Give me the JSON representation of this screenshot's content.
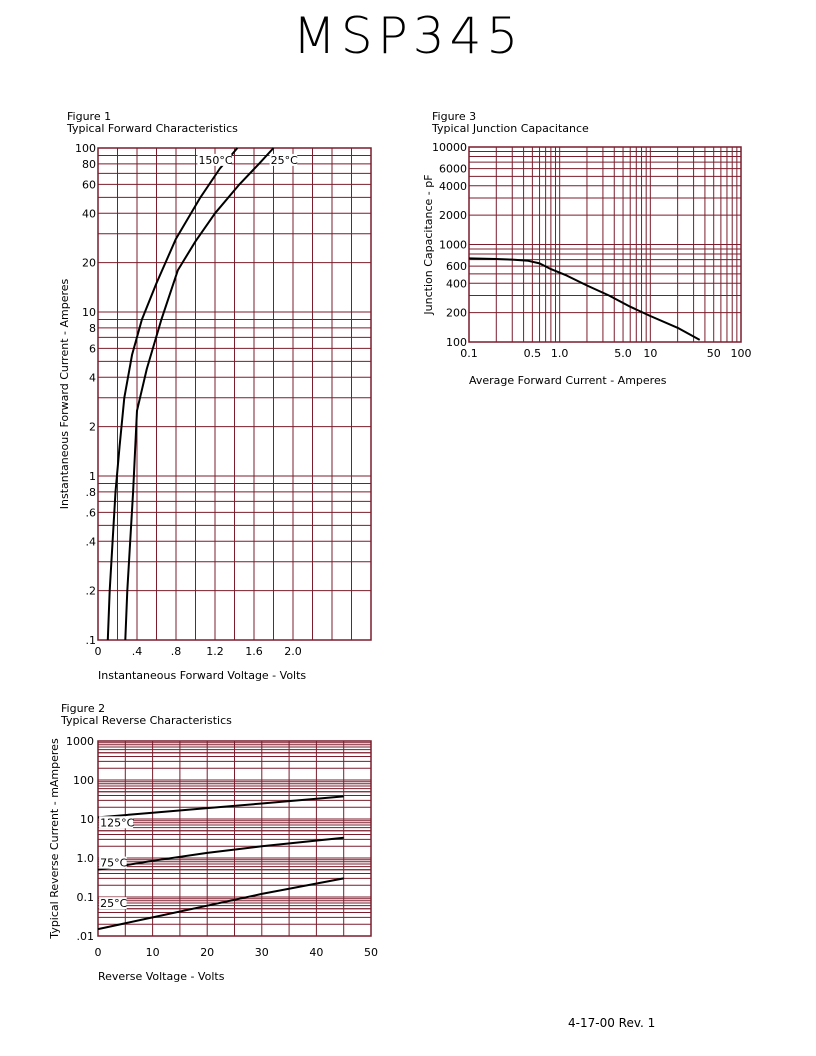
{
  "document": {
    "title": "MSP345",
    "revision": "4-17-00   Rev. 1"
  },
  "figures": [
    {
      "number": "Figure 1",
      "caption": "Typical Forward Characteristics"
    },
    {
      "number": "Figure 2",
      "caption": "Typical Reverse Characteristics"
    },
    {
      "number": "Figure 3",
      "caption": "Typical Junction Capacitance"
    }
  ],
  "colors": {
    "grid": "#7b1d2c",
    "curve": "#000000",
    "text": "#000000"
  },
  "chart_data": [
    {
      "type": "line",
      "title": "Typical Forward Characteristics",
      "xlabel": "Instantaneous Forward Voltage - Volts",
      "ylabel": "Instantaneous Forward Current - Amperes",
      "xlim": [
        0,
        2.8
      ],
      "ylim": [
        0.1,
        100
      ],
      "yscale": "log",
      "grid": true,
      "xticks": [
        0,
        0.4,
        0.8,
        1.2,
        1.6,
        2.0
      ],
      "xticklabels": [
        "0",
        ".4",
        ".8",
        "1.2",
        "1.6",
        "2.0"
      ],
      "yticks": [
        0.1,
        0.2,
        0.4,
        0.6,
        0.8,
        1,
        2,
        4,
        6,
        8,
        10,
        20,
        40,
        60,
        80,
        100
      ],
      "yticklabels": [
        ".1",
        ".2",
        ".4",
        ".6",
        ".8",
        "1",
        "2",
        "4",
        "6",
        "8",
        "10",
        "20",
        "40",
        "60",
        "80",
        "100"
      ],
      "series": [
        {
          "name": "150°C",
          "label_at": [
            1.02,
            80
          ],
          "x": [
            0.1,
            0.12,
            0.15,
            0.18,
            0.22,
            0.27,
            0.35,
            0.45,
            0.6,
            0.8,
            1.05,
            1.25,
            1.43
          ],
          "y": [
            0.1,
            0.2,
            0.4,
            0.8,
            1.5,
            3,
            5.5,
            9,
            15,
            28,
            50,
            75,
            100
          ]
        },
        {
          "name": "25°C",
          "label_at": [
            1.76,
            80
          ],
          "x": [
            0.28,
            0.3,
            0.33,
            0.36,
            0.4,
            0.5,
            0.65,
            0.82,
            1.0,
            1.2,
            1.45,
            1.65,
            1.8
          ],
          "y": [
            0.1,
            0.2,
            0.4,
            0.8,
            2.5,
            4.5,
            9,
            18,
            27,
            40,
            60,
            80,
            100
          ]
        }
      ]
    },
    {
      "type": "line",
      "title": "Typical Reverse Characteristics",
      "xlabel": "Reverse Voltage - Volts",
      "ylabel": "Typical Reverse Current - mAmperes",
      "xlim": [
        0,
        50
      ],
      "ylim": [
        0.01,
        1000
      ],
      "yscale": "log",
      "grid": true,
      "xticks": [
        0,
        10,
        20,
        30,
        40,
        50
      ],
      "xticklabels": [
        "0",
        "10",
        "20",
        "30",
        "40",
        "50"
      ],
      "yticks": [
        0.01,
        0.1,
        1,
        10,
        100,
        1000
      ],
      "yticklabels": [
        ".01",
        "0.1",
        "1.0",
        "10",
        "100",
        "1000"
      ],
      "series": [
        {
          "name": "125°C",
          "label_at": [
            0.2,
            6.5
          ],
          "x": [
            0,
            10,
            20,
            30,
            45
          ],
          "y": [
            11,
            14.5,
            19,
            25,
            38
          ]
        },
        {
          "name": "75°C",
          "label_at": [
            0.2,
            0.6
          ],
          "x": [
            0,
            10,
            20,
            30,
            45
          ],
          "y": [
            0.5,
            0.85,
            1.35,
            2,
            3.3
          ]
        },
        {
          "name": "25°C",
          "label_at": [
            0.2,
            0.055
          ],
          "x": [
            0,
            10,
            20,
            30,
            45
          ],
          "y": [
            0.015,
            0.03,
            0.06,
            0.12,
            0.3
          ]
        }
      ]
    },
    {
      "type": "line",
      "title": "Typical Junction Capacitance",
      "xlabel": "Average Forward Current - Amperes",
      "ylabel": "Junction Capacitance - pF",
      "xscale": "log",
      "yscale": "log",
      "xlim": [
        0.1,
        100
      ],
      "ylim": [
        100,
        10000
      ],
      "grid": true,
      "xticks": [
        0.1,
        0.5,
        1,
        5,
        10,
        50,
        100
      ],
      "xticklabels": [
        "0.1",
        "0.5",
        "1.0",
        "5.0",
        "10",
        "50",
        "100"
      ],
      "yticks": [
        100,
        200,
        400,
        600,
        1000,
        2000,
        4000,
        6000,
        10000
      ],
      "yticklabels": [
        "100",
        "200",
        "400",
        "600",
        "1000",
        "2000",
        "4000",
        "6000",
        "10000"
      ],
      "series": [
        {
          "x": [
            0.1,
            0.2,
            0.3,
            0.45,
            0.6,
            0.8,
            1.2,
            2,
            3.5,
            6,
            10,
            20,
            35
          ],
          "y": [
            720,
            710,
            700,
            680,
            640,
            560,
            480,
            380,
            300,
            230,
            185,
            140,
            105
          ]
        }
      ]
    }
  ]
}
